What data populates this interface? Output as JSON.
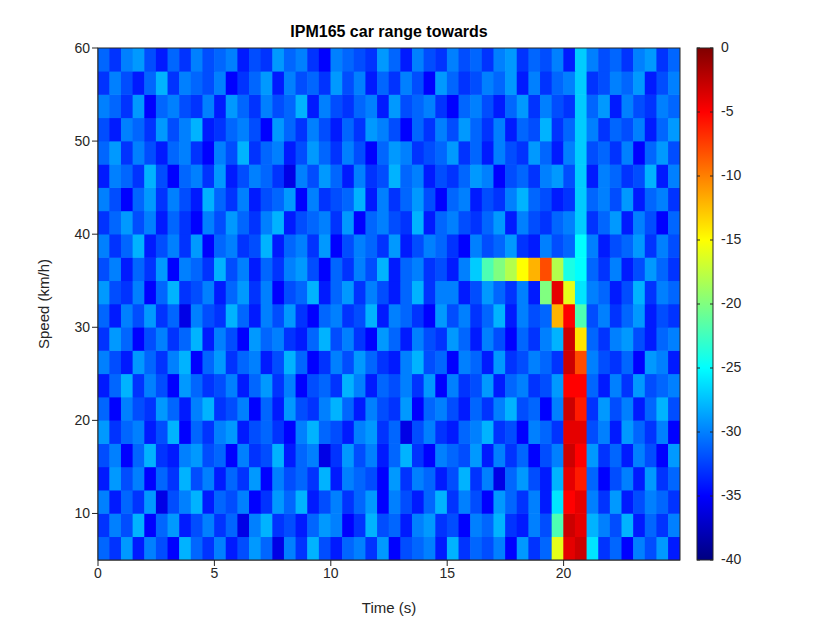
{
  "chart_data": {
    "type": "heatmap",
    "title": "IPM165 car range towards",
    "x_label": "Time (s)",
    "y_label": "Speed (km/h)",
    "xlim": [
      0,
      25
    ],
    "xticks": [
      0,
      5,
      10,
      15,
      20
    ],
    "ylim": [
      5,
      60
    ],
    "yticks": [
      10,
      20,
      30,
      40,
      50,
      60
    ],
    "clim": [
      -40,
      0
    ],
    "cticks": [
      -40,
      -35,
      -30,
      -25,
      -20,
      -15,
      -10,
      -5,
      0
    ],
    "x": [
      0.25,
      0.75,
      1.25,
      1.75,
      2.25,
      2.75,
      3.25,
      3.75,
      4.25,
      4.75,
      5.25,
      5.75,
      6.25,
      6.75,
      7.25,
      7.75,
      8.25,
      8.75,
      9.25,
      9.75,
      10.25,
      10.75,
      11.25,
      11.75,
      12.25,
      12.75,
      13.25,
      13.75,
      14.25,
      14.75,
      15.25,
      15.75,
      16.25,
      16.75,
      17.25,
      17.75,
      18.25,
      18.75,
      19.25,
      19.75,
      20.25,
      20.75,
      21.25,
      21.75,
      22.25,
      22.75,
      23.25,
      23.75,
      24.25,
      24.75
    ],
    "y": [
      6.25,
      8.75,
      11.25,
      13.75,
      16.25,
      18.75,
      21.25,
      23.75,
      26.25,
      28.75,
      31.25,
      33.75,
      36.25,
      38.75,
      41.25,
      43.75,
      46.25,
      48.75,
      51.25,
      53.75,
      56.25,
      58.75
    ],
    "z": [
      [
        -31,
        -33,
        -29,
        -34,
        -30,
        -32,
        -35,
        -28,
        -31,
        -33,
        -30,
        -34,
        -32,
        -29,
        -31,
        -36,
        -30,
        -33,
        -28,
        -32,
        -34,
        -31,
        -30,
        -33,
        -29,
        -35,
        -32,
        -31,
        -30,
        -34,
        -28,
        -33,
        -31,
        -32,
        -30,
        -35,
        -29,
        -33,
        -31,
        -16,
        -4,
        -3,
        -26,
        -33,
        -31,
        -35,
        -30,
        -32,
        -29,
        -34
      ],
      [
        -33,
        -30,
        -32,
        -28,
        -35,
        -31,
        -29,
        -34,
        -32,
        -30,
        -33,
        -31,
        -36,
        -30,
        -28,
        -33,
        -32,
        -34,
        -31,
        -29,
        -30,
        -35,
        -33,
        -28,
        -32,
        -31,
        -34,
        -30,
        -29,
        -33,
        -32,
        -35,
        -30,
        -31,
        -28,
        -33,
        -34,
        -30,
        -32,
        -22,
        -3,
        -4,
        -28,
        -30,
        -32,
        -28,
        -34,
        -31,
        -33,
        -30
      ],
      [
        -30,
        -34,
        -31,
        -33,
        -29,
        -36,
        -32,
        -30,
        -28,
        -34,
        -31,
        -32,
        -30,
        -35,
        -33,
        -29,
        -31,
        -28,
        -34,
        -32,
        -30,
        -33,
        -31,
        -29,
        -35,
        -30,
        -32,
        -34,
        -31,
        -28,
        -33,
        -30,
        -32,
        -35,
        -29,
        -31,
        -33,
        -30,
        -34,
        -26,
        -5,
        -4,
        -30,
        -33,
        -29,
        -34,
        -32,
        -30,
        -31,
        -33
      ],
      [
        -34,
        -29,
        -32,
        -30,
        -35,
        -31,
        -33,
        -28,
        -32,
        -30,
        -34,
        -31,
        -33,
        -29,
        -35,
        -30,
        -32,
        -31,
        -33,
        -28,
        -34,
        -30,
        -31,
        -32,
        -35,
        -29,
        -33,
        -30,
        -31,
        -34,
        -32,
        -28,
        -33,
        -30,
        -36,
        -31,
        -29,
        -32,
        -34,
        -28,
        -4,
        -6,
        -31,
        -35,
        -32,
        -30,
        -34,
        -29,
        -33,
        -31
      ],
      [
        -32,
        -30,
        -35,
        -31,
        -28,
        -33,
        -34,
        -30,
        -29,
        -32,
        -31,
        -35,
        -30,
        -33,
        -32,
        -28,
        -34,
        -31,
        -30,
        -36,
        -33,
        -29,
        -32,
        -30,
        -34,
        -31,
        -28,
        -33,
        -35,
        -30,
        -31,
        -32,
        -29,
        -34,
        -30,
        -33,
        -31,
        -35,
        -32,
        -30,
        -3,
        -5,
        -29,
        -33,
        -31,
        -34,
        -30,
        -32,
        -35,
        -29
      ],
      [
        -29,
        -33,
        -31,
        -30,
        -34,
        -32,
        -28,
        -35,
        -31,
        -33,
        -30,
        -29,
        -34,
        -32,
        -31,
        -33,
        -35,
        -30,
        -28,
        -31,
        -32,
        -34,
        -30,
        -29,
        -33,
        -31,
        -36,
        -32,
        -30,
        -33,
        -34,
        -31,
        -30,
        -28,
        -33,
        -32,
        -35,
        -30,
        -31,
        -33,
        -4,
        -4,
        -32,
        -30,
        -34,
        -29,
        -31,
        -33,
        -30,
        -35
      ],
      [
        -31,
        -35,
        -30,
        -32,
        -33,
        -29,
        -31,
        -34,
        -30,
        -28,
        -33,
        -32,
        -30,
        -35,
        -31,
        -34,
        -29,
        -32,
        -33,
        -30,
        -28,
        -31,
        -34,
        -30,
        -32,
        -33,
        -29,
        -35,
        -31,
        -30,
        -32,
        -34,
        -31,
        -33,
        -30,
        -28,
        -32,
        -31,
        -35,
        -30,
        -3,
        -6,
        -33,
        -29,
        -32,
        -30,
        -34,
        -31,
        -28,
        -32
      ],
      [
        -34,
        -31,
        -28,
        -33,
        -30,
        -32,
        -35,
        -29,
        -31,
        -33,
        -32,
        -30,
        -34,
        -31,
        -29,
        -33,
        -30,
        -35,
        -32,
        -31,
        -33,
        -28,
        -30,
        -34,
        -31,
        -32,
        -30,
        -33,
        -29,
        -35,
        -30,
        -33,
        -32,
        -29,
        -34,
        -31,
        -30,
        -33,
        -32,
        -29,
        -5,
        -5,
        -31,
        -34,
        -30,
        -33,
        -29,
        -32,
        -31,
        -30
      ],
      [
        -30,
        -32,
        -34,
        -29,
        -31,
        -33,
        -30,
        -28,
        -35,
        -31,
        -29,
        -33,
        -31,
        -30,
        -34,
        -32,
        -28,
        -31,
        -35,
        -33,
        -30,
        -32,
        -29,
        -31,
        -33,
        -34,
        -30,
        -28,
        -32,
        -31,
        -35,
        -30,
        -31,
        -34,
        -29,
        -33,
        -32,
        -30,
        -31,
        -33,
        -3,
        -8,
        -30,
        -32,
        -33,
        -31,
        -35,
        -29,
        -30,
        -34
      ],
      [
        -33,
        -29,
        -31,
        -35,
        -32,
        -30,
        -33,
        -31,
        -28,
        -34,
        -30,
        -32,
        -35,
        -29,
        -31,
        -30,
        -33,
        -34,
        -31,
        -28,
        -32,
        -30,
        -33,
        -35,
        -29,
        -31,
        -34,
        -30,
        -32,
        -33,
        -29,
        -31,
        -34,
        -30,
        -32,
        -35,
        -31,
        -33,
        -30,
        -28,
        -3,
        -14,
        -31,
        -33,
        -30,
        -29,
        -32,
        -34,
        -31,
        -30
      ],
      [
        -31,
        -34,
        -30,
        -32,
        -29,
        -33,
        -31,
        -36,
        -30,
        -32,
        -33,
        -28,
        -31,
        -34,
        -30,
        -32,
        -29,
        -33,
        -35,
        -31,
        -30,
        -33,
        -32,
        -28,
        -34,
        -30,
        -31,
        -33,
        -35,
        -29,
        -32,
        -30,
        -33,
        -31,
        -28,
        -34,
        -30,
        -32,
        -31,
        -12,
        -5,
        -22,
        -32,
        -30,
        -33,
        -31,
        -29,
        -34,
        -32,
        -33
      ],
      [
        -29,
        -32,
        -33,
        -30,
        -35,
        -31,
        -28,
        -33,
        -32,
        -30,
        -34,
        -31,
        -29,
        -33,
        -30,
        -35,
        -32,
        -31,
        -28,
        -34,
        -31,
        -29,
        -33,
        -30,
        -32,
        -34,
        -31,
        -28,
        -33,
        -30,
        -30,
        -34,
        -32,
        -29,
        -31,
        -33,
        -30,
        -34,
        -20,
        -4,
        -16,
        -26,
        -30,
        -31,
        -34,
        -32,
        -28,
        -33,
        -30,
        -31
      ],
      [
        -32,
        -30,
        -34,
        -31,
        -33,
        -29,
        -35,
        -30,
        -31,
        -33,
        -28,
        -32,
        -30,
        -34,
        -31,
        -33,
        -30,
        -29,
        -32,
        -35,
        -31,
        -33,
        -30,
        -32,
        -28,
        -34,
        -31,
        -30,
        -33,
        -32,
        -34,
        -30,
        -27,
        -22,
        -20,
        -18,
        -15,
        -12,
        -8,
        -18,
        -24,
        -25,
        -31,
        -33,
        -30,
        -34,
        -32,
        -29,
        -31,
        -33
      ],
      [
        -30,
        -33,
        -31,
        -28,
        -34,
        -32,
        -30,
        -33,
        -29,
        -35,
        -31,
        -30,
        -33,
        -32,
        -28,
        -34,
        -31,
        -30,
        -33,
        -29,
        -35,
        -32,
        -30,
        -31,
        -33,
        -29,
        -34,
        -32,
        -30,
        -31,
        -33,
        -35,
        -30,
        -32,
        -31,
        -29,
        -33,
        -34,
        -30,
        -32,
        -31,
        -25,
        -30,
        -34,
        -32,
        -31,
        -29,
        -33,
        -30,
        -32
      ],
      [
        -33,
        -31,
        -29,
        -32,
        -30,
        -34,
        -31,
        -33,
        -35,
        -30,
        -32,
        -29,
        -31,
        -33,
        -30,
        -28,
        -34,
        -32,
        -31,
        -30,
        -33,
        -29,
        -35,
        -31,
        -30,
        -32,
        -33,
        -28,
        -34,
        -31,
        -30,
        -32,
        -33,
        -31,
        -29,
        -34,
        -30,
        -32,
        -33,
        -31,
        -30,
        -27,
        -33,
        -31,
        -29,
        -34,
        -30,
        -32,
        -35,
        -31
      ],
      [
        -30,
        -32,
        -35,
        -31,
        -29,
        -33,
        -30,
        -32,
        -34,
        -28,
        -31,
        -33,
        -30,
        -34,
        -32,
        -31,
        -29,
        -35,
        -30,
        -33,
        -32,
        -31,
        -28,
        -34,
        -30,
        -33,
        -31,
        -29,
        -32,
        -35,
        -31,
        -30,
        -34,
        -32,
        -33,
        -30,
        -28,
        -31,
        -32,
        -34,
        -33,
        -27,
        -31,
        -30,
        -32,
        -29,
        -34,
        -31,
        -30,
        -33
      ],
      [
        -34,
        -30,
        -31,
        -33,
        -28,
        -32,
        -35,
        -31,
        -30,
        -33,
        -29,
        -34,
        -32,
        -30,
        -31,
        -33,
        -36,
        -30,
        -32,
        -29,
        -31,
        -34,
        -30,
        -33,
        -32,
        -28,
        -31,
        -30,
        -34,
        -32,
        -33,
        -31,
        -29,
        -30,
        -35,
        -32,
        -31,
        -33,
        -30,
        -29,
        -32,
        -27,
        -34,
        -30,
        -31,
        -33,
        -32,
        -28,
        -34,
        -30
      ],
      [
        -31,
        -29,
        -33,
        -30,
        -32,
        -34,
        -31,
        -30,
        -33,
        -35,
        -30,
        -32,
        -28,
        -33,
        -31,
        -30,
        -34,
        -32,
        -29,
        -31,
        -33,
        -30,
        -32,
        -35,
        -31,
        -29,
        -30,
        -33,
        -32,
        -31,
        -29,
        -33,
        -31,
        -34,
        -30,
        -32,
        -33,
        -29,
        -31,
        -34,
        -30,
        -27,
        -32,
        -31,
        -33,
        -30,
        -35,
        -31,
        -29,
        -32
      ],
      [
        -32,
        -34,
        -30,
        -31,
        -33,
        -29,
        -32,
        -30,
        -28,
        -34,
        -33,
        -31,
        -30,
        -32,
        -35,
        -29,
        -31,
        -33,
        -30,
        -32,
        -34,
        -31,
        -33,
        -29,
        -30,
        -32,
        -35,
        -31,
        -33,
        -30,
        -32,
        -29,
        -31,
        -33,
        -30,
        -34,
        -31,
        -32,
        -28,
        -33,
        -31,
        -27,
        -30,
        -33,
        -31,
        -32,
        -30,
        -34,
        -31,
        -29
      ],
      [
        -30,
        -31,
        -33,
        -29,
        -35,
        -31,
        -30,
        -32,
        -33,
        -30,
        -34,
        -29,
        -31,
        -33,
        -30,
        -32,
        -31,
        -28,
        -34,
        -30,
        -32,
        -33,
        -31,
        -30,
        -34,
        -29,
        -32,
        -31,
        -30,
        -33,
        -35,
        -31,
        -30,
        -32,
        -34,
        -31,
        -29,
        -33,
        -30,
        -32,
        -33,
        -27,
        -31,
        -29,
        -34,
        -30,
        -32,
        -33,
        -30,
        -31
      ],
      [
        -33,
        -30,
        -32,
        -34,
        -31,
        -28,
        -33,
        -30,
        -31,
        -32,
        -30,
        -35,
        -33,
        -31,
        -29,
        -34,
        -30,
        -32,
        -31,
        -33,
        -29,
        -32,
        -30,
        -34,
        -31,
        -33,
        -30,
        -32,
        -35,
        -29,
        -31,
        -33,
        -32,
        -30,
        -31,
        -29,
        -34,
        -30,
        -33,
        -31,
        -30,
        -27,
        -33,
        -32,
        -30,
        -31,
        -29,
        -34,
        -32,
        -30
      ],
      [
        -31,
        -33,
        -30,
        -29,
        -32,
        -34,
        -31,
        -33,
        -30,
        -32,
        -31,
        -30,
        -34,
        -32,
        -33,
        -29,
        -31,
        -30,
        -33,
        -35,
        -30,
        -31,
        -32,
        -33,
        -29,
        -31,
        -34,
        -30,
        -32,
        -33,
        -30,
        -32,
        -31,
        -33,
        -30,
        -29,
        -33,
        -31,
        -32,
        -30,
        -34,
        -27,
        -30,
        -32,
        -31,
        -33,
        -30,
        -29,
        -33,
        -31
      ]
    ]
  }
}
